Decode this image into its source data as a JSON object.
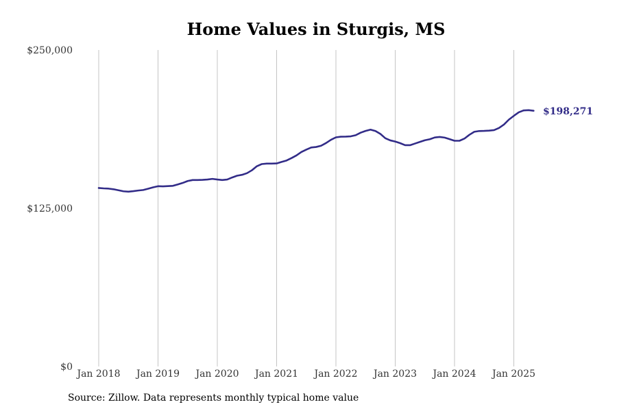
{
  "chart_data": {
    "type": "line",
    "title": "Home Values in Sturgis, MS",
    "xlabel": "",
    "ylabel": "",
    "x_ticks": [
      "Jan 2018",
      "Jan 2019",
      "Jan 2020",
      "Jan 2021",
      "Jan 2022",
      "Jan 2023",
      "Jan 2024",
      "Jan 2025"
    ],
    "y_ticks": [
      "$0",
      "$125,000",
      "$250,000"
    ],
    "ylim": [
      0,
      250000
    ],
    "xlim": [
      "2018-01",
      "2025-08"
    ],
    "grid": "vertical",
    "line_color": "#322c88",
    "end_label": "$198,271",
    "series": [
      {
        "x": [
          "2018-01",
          "2018-02",
          "2018-03",
          "2018-04",
          "2018-05",
          "2018-06",
          "2018-07",
          "2018-08",
          "2018-09",
          "2018-10",
          "2018-11",
          "2018-12",
          "2019-01",
          "2019-02",
          "2019-03",
          "2019-04",
          "2019-05",
          "2019-06",
          "2019-07",
          "2019-08",
          "2019-09",
          "2019-10",
          "2019-11",
          "2019-12",
          "2020-01",
          "2020-02",
          "2020-03",
          "2020-04",
          "2020-05",
          "2020-06",
          "2020-07",
          "2020-08",
          "2020-09",
          "2020-10",
          "2020-11",
          "2020-12",
          "2021-01",
          "2021-02",
          "2021-03",
          "2021-04",
          "2021-05",
          "2021-06",
          "2021-07",
          "2021-08",
          "2021-09",
          "2021-10",
          "2021-11",
          "2021-12",
          "2022-01",
          "2022-02",
          "2022-03",
          "2022-04",
          "2022-05",
          "2022-06",
          "2022-07",
          "2022-08",
          "2022-09",
          "2022-10",
          "2022-11",
          "2022-12",
          "2023-01",
          "2023-02",
          "2023-03",
          "2023-04",
          "2023-05",
          "2023-06",
          "2023-07",
          "2023-08",
          "2023-09",
          "2023-10",
          "2023-11",
          "2023-12",
          "2024-01",
          "2024-02",
          "2024-03",
          "2024-04",
          "2024-05",
          "2024-06",
          "2024-07",
          "2024-08",
          "2024-09",
          "2024-10",
          "2024-11",
          "2024-12",
          "2025-01",
          "2025-02",
          "2025-03",
          "2025-04",
          "2025-05"
        ],
        "values": [
          141000,
          140700,
          140500,
          140000,
          139200,
          138400,
          138100,
          138500,
          139000,
          139400,
          140400,
          141500,
          142400,
          142300,
          142500,
          142700,
          143800,
          145000,
          146500,
          147300,
          147300,
          147400,
          147700,
          148200,
          147700,
          147300,
          147700,
          149300,
          150700,
          151400,
          152700,
          155000,
          158200,
          159900,
          160300,
          160300,
          160400,
          161600,
          162700,
          164600,
          166700,
          169400,
          171300,
          173000,
          173400,
          174400,
          176500,
          179100,
          181000,
          181500,
          181600,
          181800,
          182700,
          184700,
          186100,
          187100,
          186000,
          183700,
          180300,
          178600,
          177700,
          176400,
          174800,
          174800,
          176100,
          177400,
          178700,
          179500,
          180900,
          181300,
          180800,
          179600,
          178300,
          178300,
          180000,
          183000,
          185400,
          186000,
          186100,
          186300,
          186700,
          188400,
          191100,
          195000,
          198000,
          200800,
          202300,
          202500,
          202000
        ]
      }
    ]
  },
  "source_note": "Source: Zillow. Data represents monthly typical home value"
}
